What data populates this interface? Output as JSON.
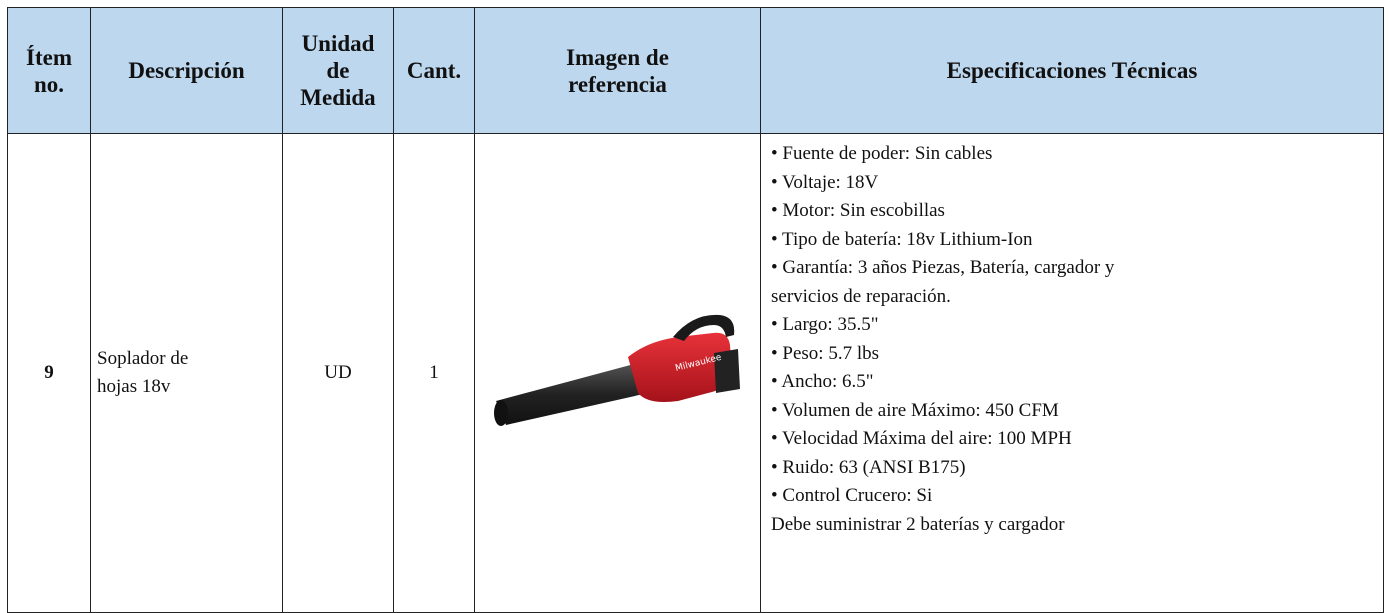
{
  "table": {
    "headers": [
      [
        "Ítem",
        "no."
      ],
      [
        "Descripción"
      ],
      [
        "Unidad",
        "de",
        "Medida"
      ],
      [
        "Cant."
      ],
      [
        "Imagen de",
        "referencia"
      ],
      [
        "Especificaciones Técnicas"
      ]
    ],
    "rows": [
      {
        "item": "9",
        "description": [
          "Soplador de",
          "hojas 18v"
        ],
        "unit": "UD",
        "quantity": "1",
        "specs": [
          "• Fuente de poder: Sin cables",
          "• Voltaje: 18V",
          "• Motor: Sin escobillas",
          "• Tipo de batería: 18v Lithium-Ion",
          "• Garantía: 3 años Piezas, Batería, cargador y",
          "servicios de reparación.",
          "• Largo: 35.5\"",
          "• Peso: 5.7 lbs",
          "• Ancho: 6.5\"",
          "• Volumen de aire Máximo: 450 CFM",
          "• Velocidad Máxima del aire: 100 MPH",
          "• Ruido: 63 (ANSI B175)",
          "• Control Crucero: Si",
          "Debe suministrar 2 baterías y cargador"
        ]
      }
    ]
  }
}
